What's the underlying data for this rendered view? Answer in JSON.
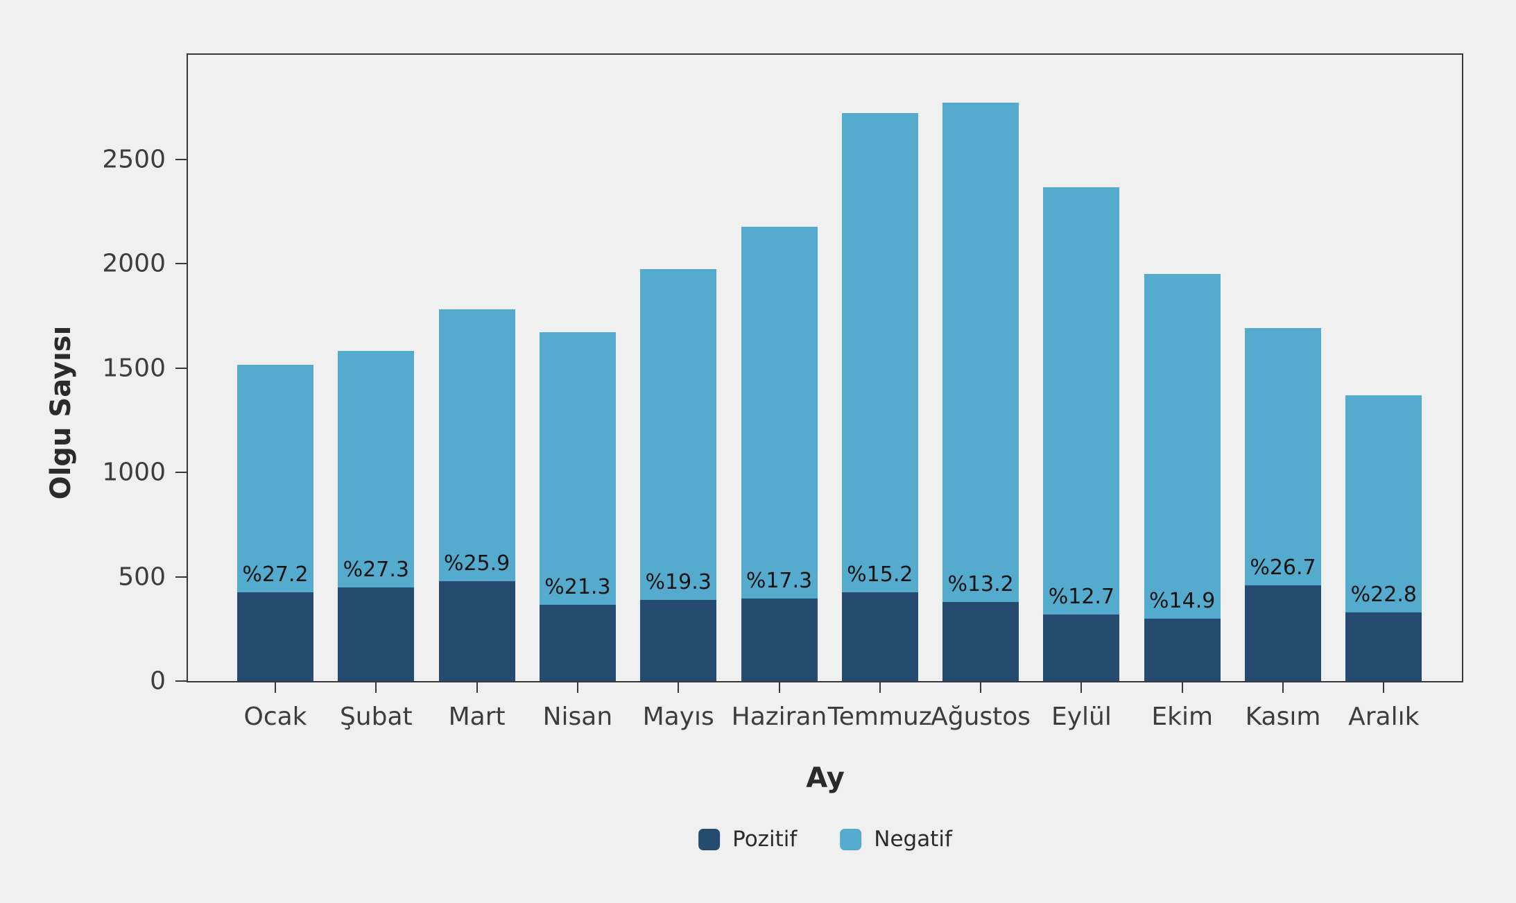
{
  "figure": {
    "background": "#f0f0f0",
    "panel_border_color": "#38383c",
    "tick_text_color": "#3d3d3d",
    "title_text_color": "#2b2b2b"
  },
  "chart_data": {
    "type": "bar",
    "stacked": true,
    "orientation": "vertical",
    "categories": [
      "Ocak",
      "Şubat",
      "Mart",
      "Nisan",
      "Mayıs",
      "Haziran",
      "Temmuz",
      "Ağustos",
      "Eylül",
      "Ekim",
      "Kasım",
      "Aralık"
    ],
    "series": [
      {
        "name": "Pozitif",
        "color": "#254b70",
        "values": [
          425,
          450,
          480,
          365,
          390,
          395,
          425,
          380,
          320,
          300,
          460,
          330
        ]
      },
      {
        "name": "Negatif",
        "color": "#55abcd",
        "values": [
          1090,
          1130,
          1300,
          1305,
          1585,
          1780,
          2295,
          2390,
          2045,
          1650,
          1230,
          1040
        ]
      }
    ],
    "totals": [
      1515,
      1580,
      1780,
      1670,
      1975,
      2175,
      2720,
      2770,
      2365,
      1950,
      1690,
      1370
    ],
    "bar_labels": [
      "%27.2",
      "%27.3",
      "%25.9",
      "%21.3",
      "%19.3",
      "%17.3",
      "%15.2",
      "%13.2",
      "%12.7",
      "%14.9",
      "%26.7",
      "%22.8"
    ],
    "xlabel": "Ay",
    "ylabel": "Olgu Sayısı",
    "ylim": [
      0,
      3000
    ],
    "yticks": [
      0,
      500,
      1000,
      1500,
      2000,
      2500
    ],
    "grid": false,
    "legend": {
      "position": "bottom",
      "entries": [
        "Pozitif",
        "Negatif"
      ]
    }
  }
}
